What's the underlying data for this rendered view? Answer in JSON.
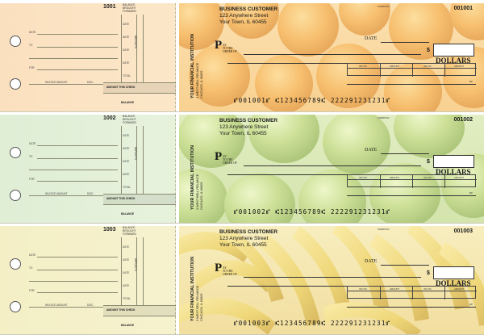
{
  "checks": [
    {
      "check_number": "001001",
      "stub_number": "1001",
      "micr_line": "⑈001001⑈ ⑆123456789⑆ 222291231231⑈",
      "theme": "oranges",
      "stub_color": "#fbe0bf"
    },
    {
      "check_number": "001002",
      "stub_number": "1002",
      "micr_line": "⑈001002⑈ ⑆123456789⑆ 222291231231⑈",
      "theme": "green-apples",
      "stub_color": "#e0eed6"
    },
    {
      "check_number": "001003",
      "stub_number": "1003",
      "micr_line": "⑈001003⑈ ⑆123456789⑆ 222291231231⑈",
      "theme": "bananas",
      "stub_color": "#f4efc5"
    }
  ],
  "customer": {
    "name": "BUSINESS CUSTOMER",
    "address1": "123 Anywhere Street",
    "address2": "Your Town, IL 60455"
  },
  "bank": {
    "name": "YOUR FINANCIAL INSTITUTION",
    "address1": "3 WEST BELL RELIANCE",
    "address2": "CHICAGO, IL 60609"
  },
  "labels": {
    "date": "DATE",
    "pay_big": "P",
    "pay_small1": "AY",
    "pay_small2": "TO THE",
    "pay_small3": "ORDER OF",
    "dollar_sign": "$",
    "dollars": "DOLLARS",
    "inv_no": "INV NO.",
    "amount": "AMOUNT",
    "mp": "MP",
    "tiny_code": "SUMMIT123"
  },
  "stub_labels": {
    "balance_brought_forward": "BALANCE BROUGHT FORWARD",
    "date": "DATE",
    "to": "TO",
    "for": "FOR",
    "deposits": "DEPOSITS",
    "total": "TOTAL",
    "amount_this_check": "AMOUNT THIS CHECK",
    "balance": "BALANCE",
    "invoice_amount": "INVOICE AMOUNT",
    "disc": "DISC"
  }
}
